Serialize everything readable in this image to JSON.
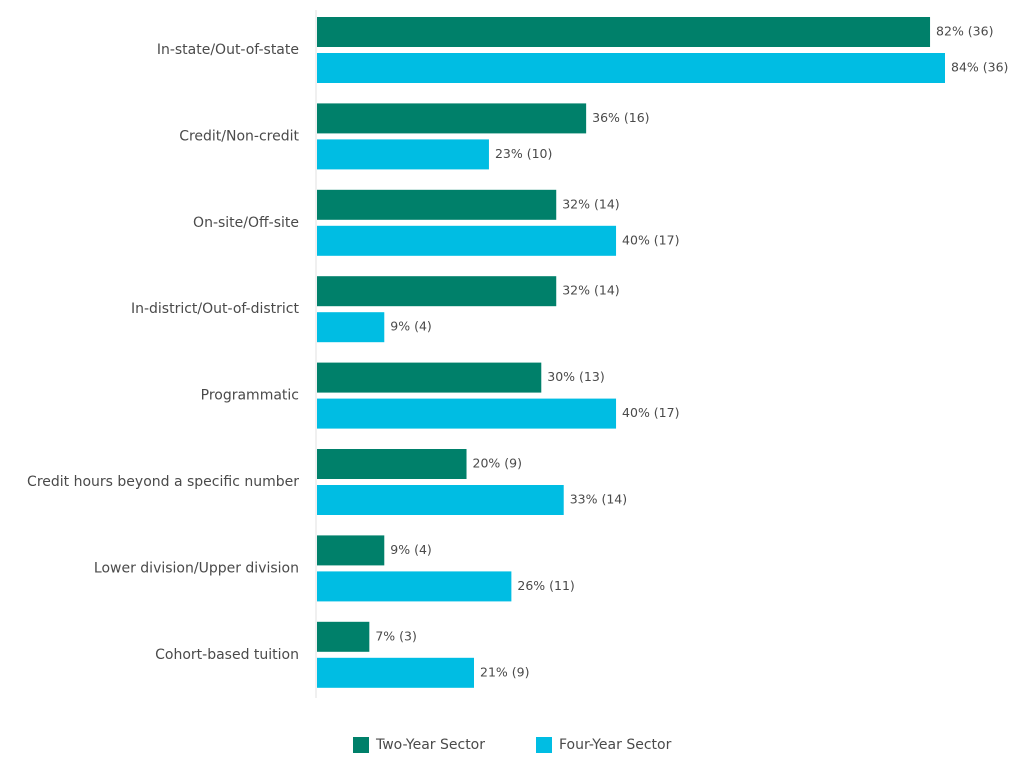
{
  "chart_data": {
    "type": "bar",
    "orientation": "horizontal",
    "categories": [
      "In-state/Out-of-state",
      "Credit/Non-credit",
      "On-site/Off-site",
      "In-district/Out-of-district",
      "Programmatic",
      "Credit hours beyond a specific number",
      "Lower division/Upper division",
      "Cohort-based tuition"
    ],
    "series": [
      {
        "name": "Two-Year Sector",
        "color": "#00806a",
        "values": [
          82,
          36,
          32,
          32,
          30,
          20,
          9,
          7
        ],
        "counts": [
          36,
          16,
          14,
          14,
          13,
          9,
          4,
          3
        ],
        "labels": [
          "82% (36)",
          "36% (16)",
          "32% (14)",
          "32% (14)",
          "30% (13)",
          "20% (9)",
          "9% (4)",
          "7% (3)"
        ]
      },
      {
        "name": "Four-Year Sector",
        "color": "#00bde3",
        "values": [
          84,
          23,
          40,
          9,
          40,
          33,
          26,
          21
        ],
        "counts": [
          36,
          10,
          17,
          4,
          17,
          14,
          11,
          9
        ],
        "labels": [
          "84% (36)",
          "23% (10)",
          "40% (17)",
          "9% (4)",
          "40% (17)",
          "33% (14)",
          "26% (11)",
          "21% (9)"
        ]
      }
    ],
    "xlim": [
      0,
      84
    ],
    "unit": "%",
    "grid": false,
    "legend": "bottom-center"
  }
}
